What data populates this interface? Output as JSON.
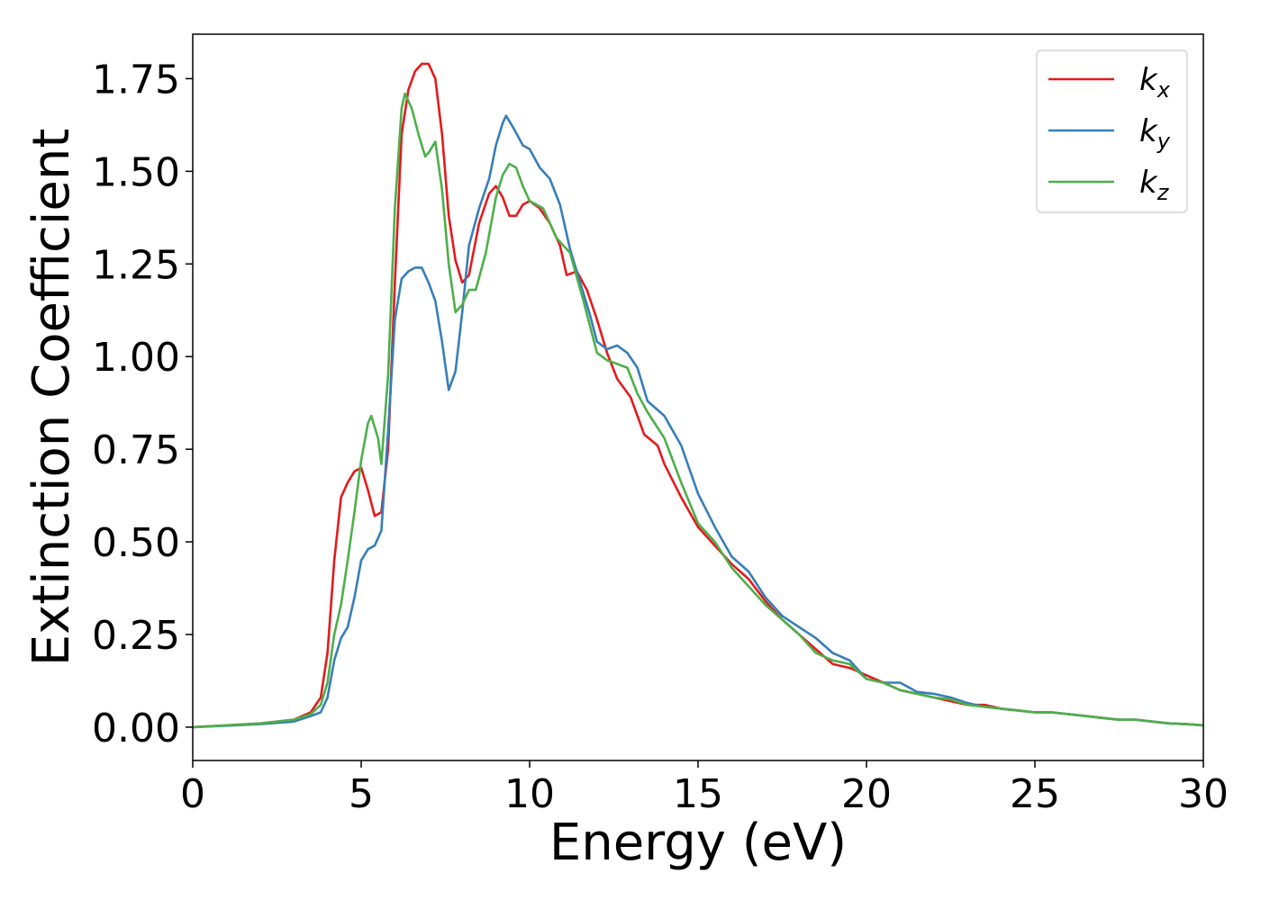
{
  "chart_data": {
    "type": "line",
    "title": "",
    "xlabel": "Energy (eV)",
    "ylabel": "Extinction Coefficient",
    "xlim": [
      0,
      30
    ],
    "ylim": [
      -0.09,
      1.87
    ],
    "xticks": [
      0,
      5,
      10,
      15,
      20,
      25,
      30
    ],
    "xtick_labels": [
      "0",
      "5",
      "10",
      "15",
      "20",
      "25",
      "30"
    ],
    "yticks": [
      0,
      0.25,
      0.5,
      0.75,
      1.0,
      1.25,
      1.5,
      1.75
    ],
    "ytick_labels": [
      "0.00",
      "0.25",
      "0.50",
      "0.75",
      "1.00",
      "1.25",
      "1.50",
      "1.75"
    ],
    "grid": false,
    "legend_position": "top-right",
    "series": [
      {
        "name": "k_x",
        "legend_base": "k",
        "legend_sub": "x",
        "color": "#e41a1c",
        "x": [
          0,
          1,
          2,
          3,
          3.5,
          3.8,
          4.0,
          4.2,
          4.4,
          4.6,
          4.8,
          5.0,
          5.2,
          5.4,
          5.6,
          5.8,
          6.0,
          6.2,
          6.4,
          6.6,
          6.8,
          7.0,
          7.2,
          7.4,
          7.6,
          7.8,
          8.0,
          8.2,
          8.5,
          8.8,
          9.0,
          9.2,
          9.4,
          9.6,
          9.8,
          10.0,
          10.3,
          10.6,
          10.9,
          11.1,
          11.4,
          11.7,
          12.0,
          12.3,
          12.6,
          13.0,
          13.4,
          13.8,
          14.0,
          14.5,
          15.0,
          15.5,
          16.0,
          16.5,
          17.0,
          17.5,
          18.0,
          18.5,
          19.0,
          19.5,
          20.0,
          20.5,
          21.0,
          21.5,
          22.0,
          22.5,
          23.0,
          23.5,
          24.0,
          24.5,
          25.0,
          25.5,
          26.0,
          26.5,
          27.0,
          27.5,
          28.0,
          28.5,
          29.0,
          29.5,
          30.0
        ],
        "y": [
          0.0,
          0.005,
          0.01,
          0.02,
          0.04,
          0.08,
          0.2,
          0.45,
          0.62,
          0.66,
          0.69,
          0.7,
          0.64,
          0.57,
          0.58,
          0.75,
          1.2,
          1.6,
          1.72,
          1.77,
          1.79,
          1.79,
          1.75,
          1.6,
          1.38,
          1.26,
          1.2,
          1.22,
          1.36,
          1.44,
          1.46,
          1.43,
          1.38,
          1.38,
          1.41,
          1.42,
          1.4,
          1.36,
          1.3,
          1.22,
          1.23,
          1.18,
          1.1,
          1.01,
          0.94,
          0.89,
          0.79,
          0.76,
          0.71,
          0.62,
          0.54,
          0.49,
          0.44,
          0.4,
          0.34,
          0.29,
          0.25,
          0.21,
          0.17,
          0.16,
          0.14,
          0.12,
          0.1,
          0.09,
          0.08,
          0.07,
          0.06,
          0.06,
          0.05,
          0.045,
          0.04,
          0.04,
          0.035,
          0.03,
          0.025,
          0.02,
          0.02,
          0.015,
          0.01,
          0.008,
          0.005
        ]
      },
      {
        "name": "k_y",
        "legend_base": "k",
        "legend_sub": "y",
        "color": "#377eb8",
        "x": [
          0,
          1,
          2,
          3,
          3.5,
          3.8,
          4.0,
          4.2,
          4.4,
          4.6,
          4.8,
          5.0,
          5.2,
          5.4,
          5.6,
          5.8,
          6.0,
          6.2,
          6.4,
          6.6,
          6.8,
          7.0,
          7.2,
          7.4,
          7.6,
          7.8,
          8.0,
          8.2,
          8.5,
          8.8,
          9.0,
          9.2,
          9.3,
          9.5,
          9.8,
          10.0,
          10.3,
          10.6,
          10.9,
          11.2,
          11.5,
          11.8,
          12.0,
          12.3,
          12.6,
          12.9,
          13.2,
          13.5,
          14.0,
          14.5,
          15.0,
          15.5,
          16.0,
          16.5,
          17.0,
          17.5,
          18.0,
          18.5,
          19.0,
          19.5,
          20.0,
          20.5,
          21.0,
          21.5,
          22.0,
          22.5,
          23.0,
          23.5,
          24.0,
          24.5,
          25.0,
          25.5,
          26.0,
          26.5,
          27.0,
          27.5,
          28.0,
          28.5,
          29.0,
          29.5,
          30.0
        ],
        "y": [
          0.0,
          0.004,
          0.008,
          0.015,
          0.03,
          0.04,
          0.08,
          0.18,
          0.24,
          0.27,
          0.35,
          0.45,
          0.48,
          0.49,
          0.53,
          0.8,
          1.1,
          1.21,
          1.23,
          1.24,
          1.24,
          1.2,
          1.15,
          1.04,
          0.91,
          0.96,
          1.12,
          1.3,
          1.4,
          1.48,
          1.57,
          1.63,
          1.65,
          1.62,
          1.57,
          1.56,
          1.51,
          1.48,
          1.41,
          1.29,
          1.2,
          1.11,
          1.04,
          1.02,
          1.03,
          1.01,
          0.97,
          0.88,
          0.84,
          0.76,
          0.63,
          0.54,
          0.46,
          0.42,
          0.35,
          0.3,
          0.27,
          0.24,
          0.2,
          0.18,
          0.13,
          0.12,
          0.12,
          0.095,
          0.09,
          0.08,
          0.065,
          0.055,
          0.05,
          0.045,
          0.04,
          0.04,
          0.035,
          0.03,
          0.025,
          0.02,
          0.02,
          0.015,
          0.01,
          0.008,
          0.005
        ]
      },
      {
        "name": "k_z",
        "legend_base": "k",
        "legend_sub": "z",
        "color": "#4daf4a",
        "x": [
          0,
          1,
          2,
          3,
          3.5,
          3.8,
          4.0,
          4.2,
          4.4,
          4.6,
          4.8,
          5.0,
          5.2,
          5.3,
          5.5,
          5.6,
          5.8,
          6.0,
          6.2,
          6.3,
          6.5,
          6.7,
          6.9,
          7.0,
          7.2,
          7.4,
          7.6,
          7.8,
          8.0,
          8.2,
          8.4,
          8.7,
          9.0,
          9.2,
          9.4,
          9.6,
          9.8,
          10.0,
          10.4,
          10.8,
          11.2,
          11.6,
          12.0,
          12.3,
          12.6,
          12.9,
          13.2,
          13.5,
          14.0,
          14.5,
          15.0,
          15.5,
          16.0,
          16.5,
          17.0,
          17.5,
          18.0,
          18.5,
          19.0,
          19.5,
          20.0,
          20.5,
          21.0,
          21.5,
          22.0,
          22.5,
          23.0,
          23.5,
          24.0,
          24.5,
          25.0,
          25.5,
          26.0,
          26.5,
          27.0,
          27.5,
          28.0,
          28.5,
          29.0,
          29.5,
          30.0
        ],
        "y": [
          0.0,
          0.005,
          0.01,
          0.02,
          0.035,
          0.06,
          0.12,
          0.25,
          0.33,
          0.45,
          0.58,
          0.72,
          0.82,
          0.84,
          0.78,
          0.71,
          0.95,
          1.4,
          1.67,
          1.71,
          1.67,
          1.6,
          1.54,
          1.55,
          1.58,
          1.45,
          1.25,
          1.12,
          1.14,
          1.18,
          1.18,
          1.28,
          1.43,
          1.49,
          1.52,
          1.51,
          1.46,
          1.42,
          1.4,
          1.32,
          1.28,
          1.15,
          1.01,
          0.99,
          0.98,
          0.97,
          0.9,
          0.85,
          0.78,
          0.66,
          0.55,
          0.5,
          0.43,
          0.38,
          0.33,
          0.29,
          0.25,
          0.2,
          0.18,
          0.17,
          0.13,
          0.12,
          0.1,
          0.09,
          0.08,
          0.075,
          0.06,
          0.055,
          0.05,
          0.045,
          0.04,
          0.04,
          0.035,
          0.03,
          0.025,
          0.02,
          0.02,
          0.015,
          0.01,
          0.008,
          0.005
        ]
      }
    ]
  }
}
